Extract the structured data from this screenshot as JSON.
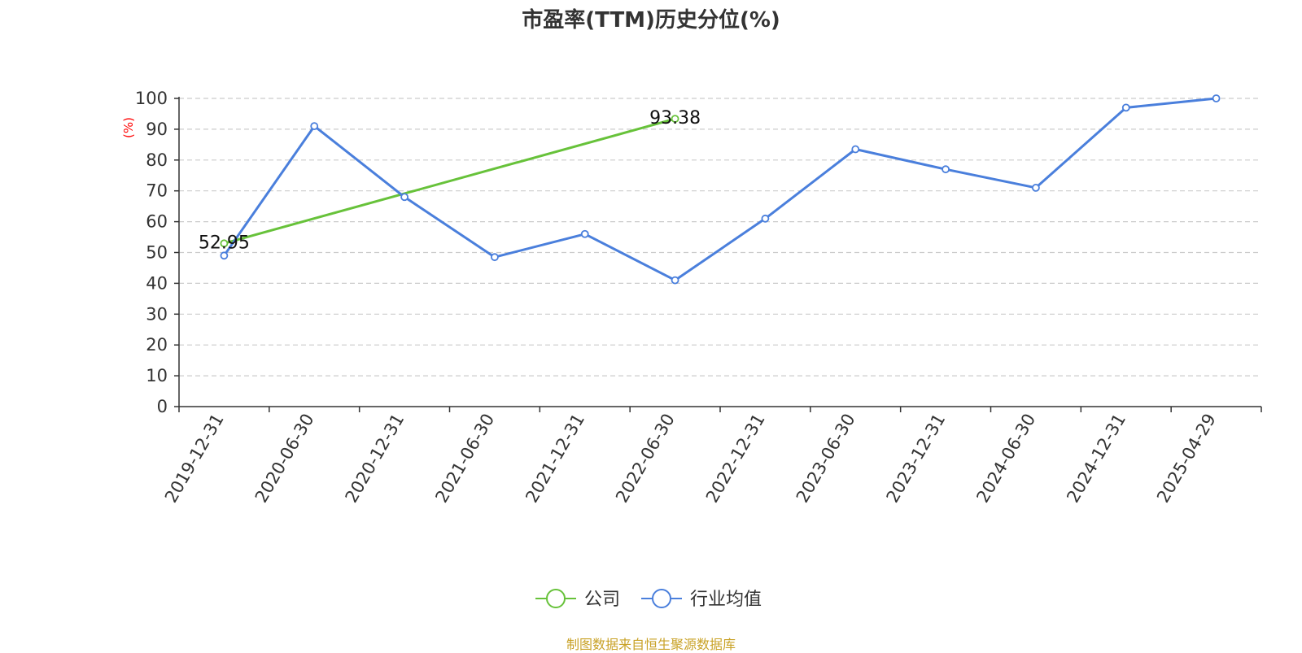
{
  "chart_data": {
    "type": "line",
    "title": "市盈率(TTM)历史分位(%)",
    "ylabel": "(%)",
    "xlabel": "",
    "ylim": [
      0,
      100
    ],
    "yticks": [
      0,
      10,
      20,
      30,
      40,
      50,
      60,
      70,
      80,
      90,
      100
    ],
    "grid": "horizontal dashed",
    "legend_position": "bottom-center",
    "categories": [
      "2019-12-31",
      "2020-06-30",
      "2020-12-31",
      "2021-06-30",
      "2021-12-31",
      "2022-06-30",
      "2022-12-31",
      "2023-06-30",
      "2023-12-31",
      "2024-06-30",
      "2024-12-31",
      "2025-04-29"
    ],
    "series": [
      {
        "name": "公司",
        "color": "#67c23a",
        "values": [
          52.95,
          null,
          null,
          null,
          null,
          93.38,
          null,
          null,
          null,
          null,
          null,
          null
        ],
        "labels": [
          "52.95",
          null,
          null,
          null,
          null,
          "93.38",
          null,
          null,
          null,
          null,
          null,
          null
        ]
      },
      {
        "name": "行业均值",
        "color": "#4a7fdc",
        "values": [
          49,
          91,
          68,
          48.5,
          56,
          41,
          61,
          83.5,
          77,
          71,
          97,
          100
        ]
      }
    ]
  },
  "source": "制图数据来自恒生聚源数据库"
}
